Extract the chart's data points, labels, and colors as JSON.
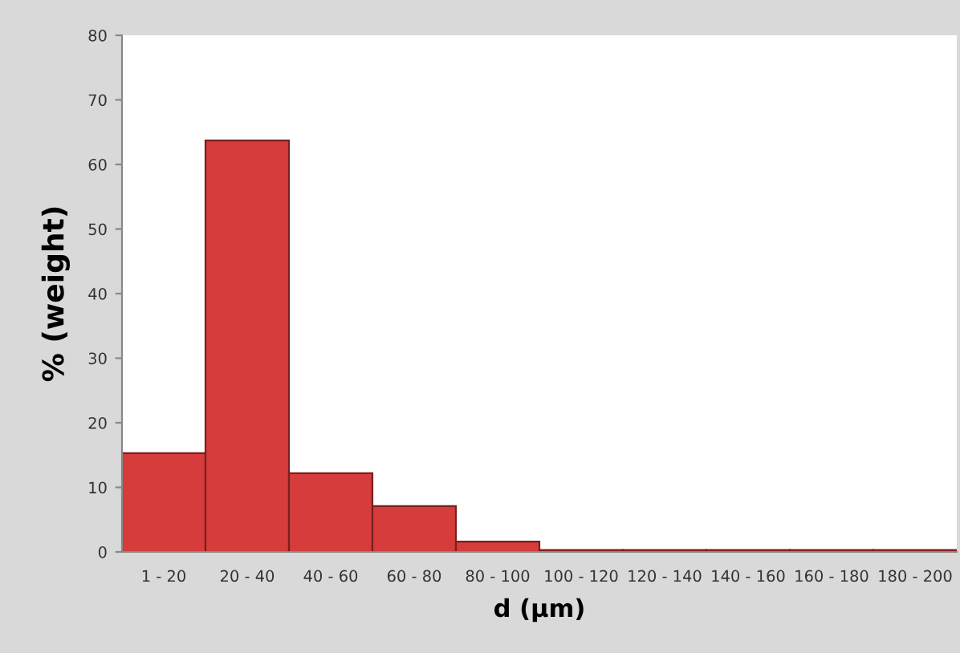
{
  "chart_data": {
    "type": "bar",
    "xlabel": "d (µm)",
    "ylabel": "% (weight)",
    "categories": [
      "1 - 20",
      "20 - 40",
      "40 - 60",
      "60 - 80",
      "80 - 100",
      "100 - 120",
      "120 - 140",
      "140 - 160",
      "160 - 180",
      "180 - 200"
    ],
    "values": [
      15.3,
      63.7,
      12.2,
      7.1,
      1.6,
      0.3,
      0.3,
      0.3,
      0.3,
      0.3
    ],
    "color": "#d63c3c",
    "ylim": [
      0,
      80
    ],
    "yticks": [
      0,
      10,
      20,
      30,
      40,
      50,
      60,
      70,
      80
    ],
    "grid": false,
    "legend": false
  }
}
